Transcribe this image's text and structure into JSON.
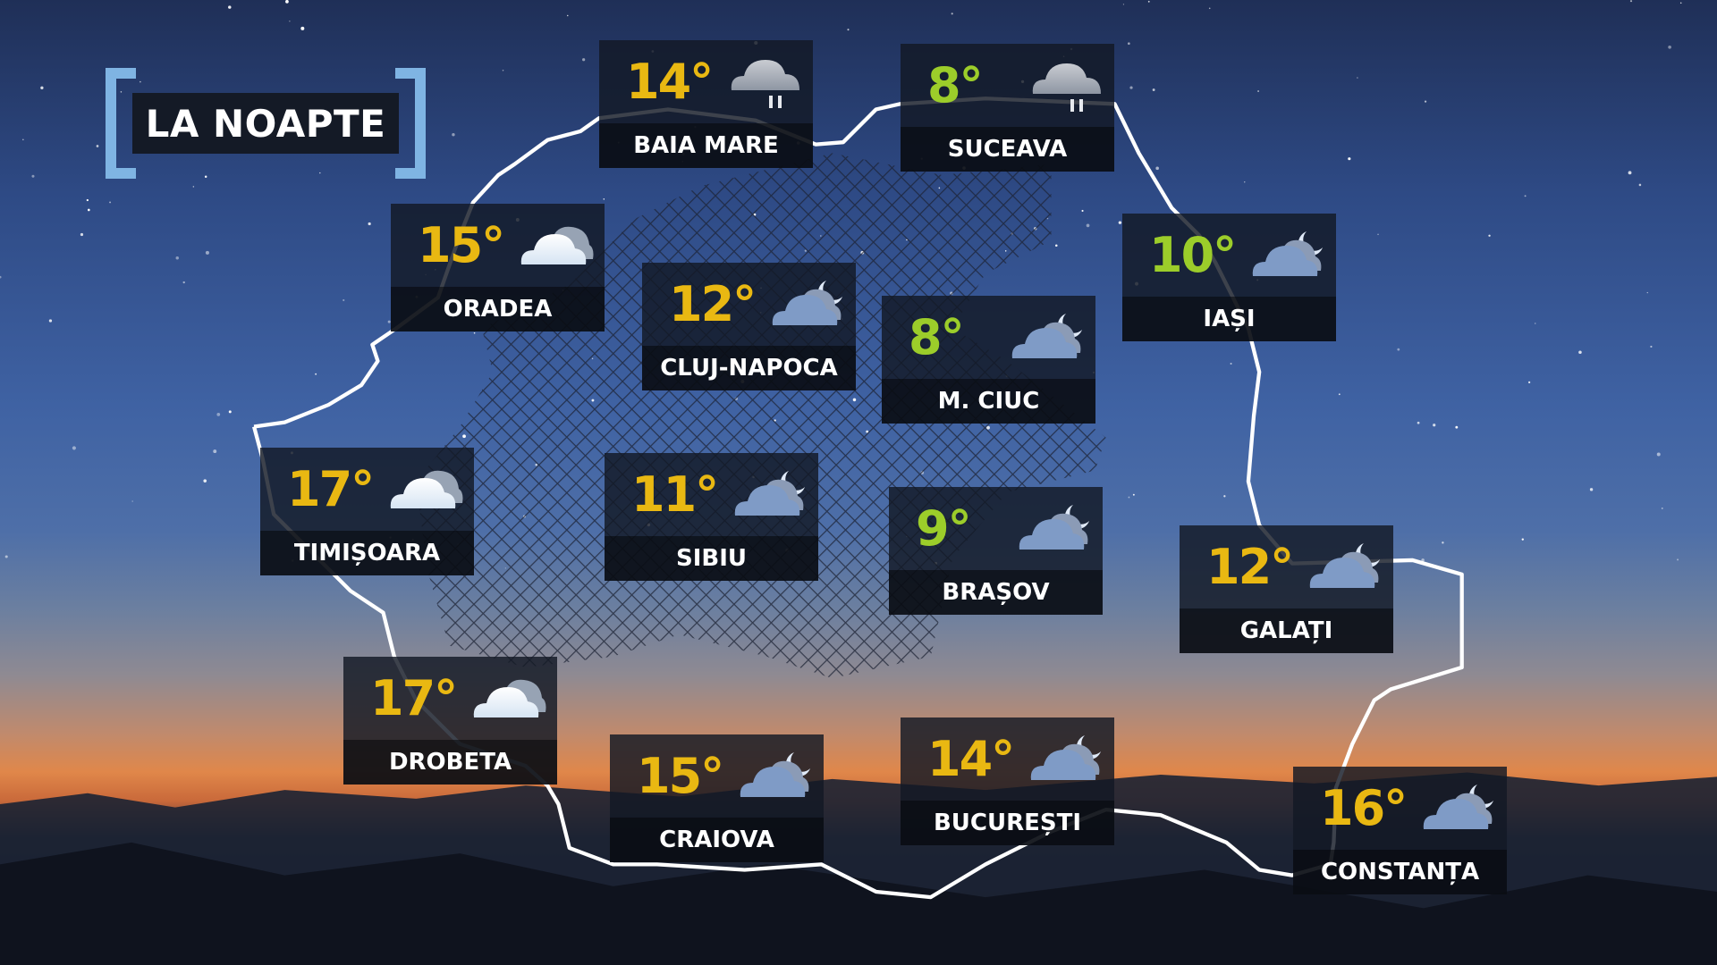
{
  "title": "LA NOAPTE",
  "colors": {
    "warm": "#e9b812",
    "cool": "#9ccd2a",
    "bracket": "#7fb4e3",
    "outline": "#ffffff"
  },
  "cities": [
    {
      "name": "BAIA MARE",
      "temp": "14°",
      "tone": "warm",
      "icon": "rain-cloud-icon"
    },
    {
      "name": "SUCEAVA",
      "temp": "8°",
      "tone": "cool",
      "icon": "rain-cloud-icon"
    },
    {
      "name": "ORADEA",
      "temp": "15°",
      "tone": "warm",
      "icon": "cloud-icon"
    },
    {
      "name": "CLUJ-NAPOCA",
      "temp": "12°",
      "tone": "warm",
      "icon": "cloud-moon-icon"
    },
    {
      "name": "IAȘI",
      "temp": "10°",
      "tone": "cool",
      "icon": "cloud-moon-icon"
    },
    {
      "name": "M. CIUC",
      "temp": "8°",
      "tone": "cool",
      "icon": "cloud-moon-icon"
    },
    {
      "name": "TIMIȘOARA",
      "temp": "17°",
      "tone": "warm",
      "icon": "cloud-icon"
    },
    {
      "name": "SIBIU",
      "temp": "11°",
      "tone": "warm",
      "icon": "cloud-moon-icon"
    },
    {
      "name": "BRAȘOV",
      "temp": "9°",
      "tone": "cool",
      "icon": "cloud-moon-icon"
    },
    {
      "name": "GALAȚI",
      "temp": "12°",
      "tone": "warm",
      "icon": "cloud-moon-icon"
    },
    {
      "name": "DROBETA",
      "temp": "17°",
      "tone": "warm",
      "icon": "cloud-icon"
    },
    {
      "name": "CRAIOVA",
      "temp": "15°",
      "tone": "warm",
      "icon": "cloud-moon-icon"
    },
    {
      "name": "BUCUREȘTI",
      "temp": "14°",
      "tone": "warm",
      "icon": "cloud-moon-icon"
    },
    {
      "name": "CONSTANȚA",
      "temp": "16°",
      "tone": "warm",
      "icon": "cloud-moon-icon"
    }
  ]
}
